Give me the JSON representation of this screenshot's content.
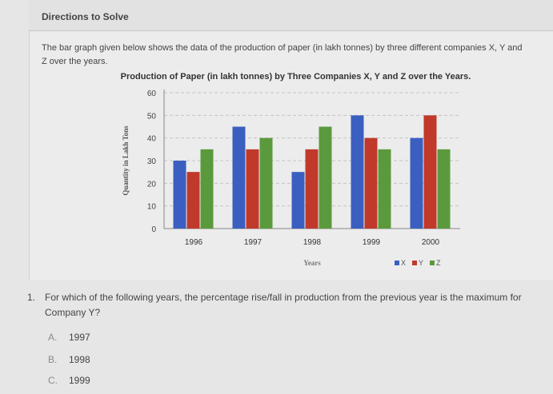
{
  "directions_heading": "Directions to Solve",
  "intro_text": "The bar graph given below shows the data of the production of paper (in lakh tonnes) by three different companies X, Y and Z over the years.",
  "chart_data": {
    "type": "bar",
    "title": "Production of Paper (in lakh tonnes) by Three Companies X, Y and Z over the Years.",
    "xlabel": "Years",
    "ylabel": "Quantity in Lakh Tons",
    "categories": [
      "1996",
      "1997",
      "1998",
      "1999",
      "2000"
    ],
    "series": [
      {
        "name": "X",
        "color": "#3b5fc0",
        "values": [
          30,
          45,
          25,
          50,
          40
        ]
      },
      {
        "name": "Y",
        "color": "#c0392b",
        "values": [
          25,
          35,
          35,
          40,
          50
        ]
      },
      {
        "name": "Z",
        "color": "#5a9a3c",
        "values": [
          35,
          40,
          45,
          35,
          35
        ]
      }
    ],
    "ylim": [
      0,
      60
    ],
    "yticks": [
      0,
      10,
      20,
      30,
      40,
      50,
      60
    ],
    "grid": true,
    "legend": "bottom-right"
  },
  "question": {
    "number": "1.",
    "text": "For which of the following years, the percentage rise/fall in production from the previous year is the maximum for Company Y?",
    "options": [
      {
        "letter": "A.",
        "value": "1997"
      },
      {
        "letter": "B.",
        "value": "1998"
      },
      {
        "letter": "C.",
        "value": "1999"
      }
    ]
  }
}
